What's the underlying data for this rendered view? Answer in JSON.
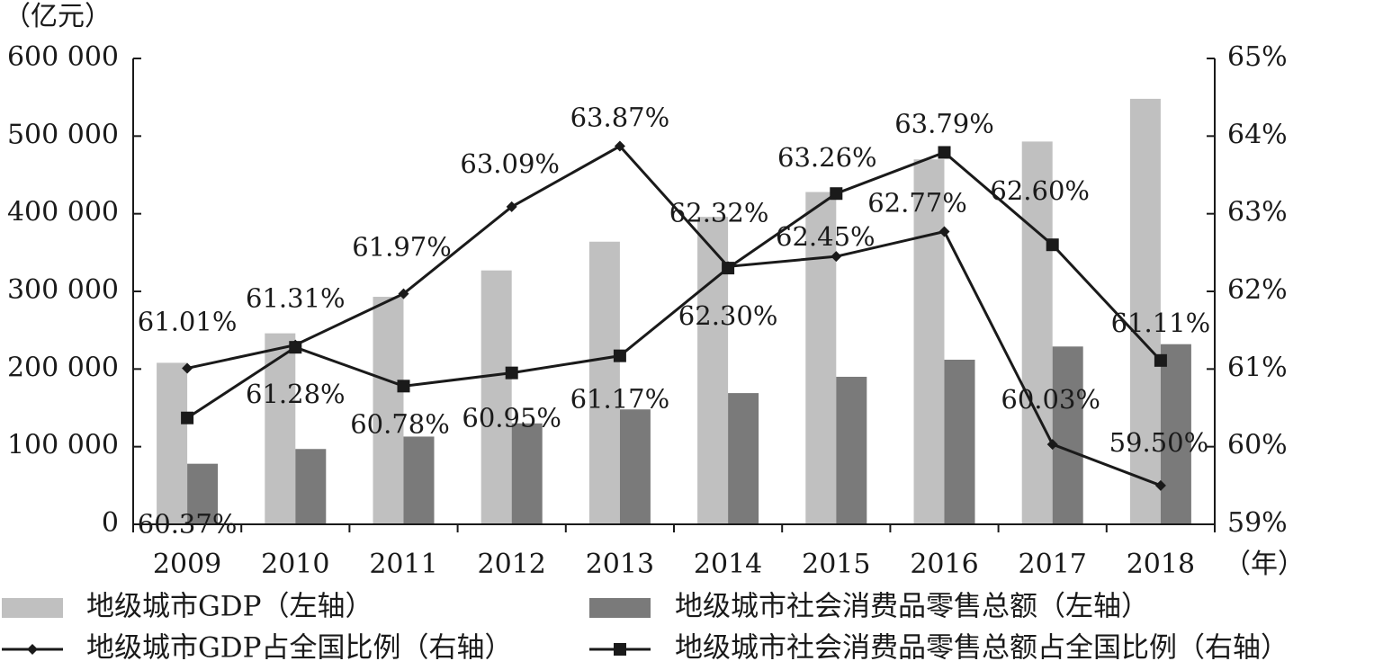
{
  "colors": {
    "gdp_bar": "#c0c0c0",
    "retail_bar": "#7a7a7a",
    "line": "#1a1a1a",
    "axis": "#1a1a1a",
    "text": "#1a1a1a"
  },
  "chart_data": {
    "type": "bar+line",
    "title": "",
    "y_left_unit": "（亿元）",
    "x_unit": "（年）",
    "categories": [
      "2009",
      "2010",
      "2011",
      "2012",
      "2013",
      "2014",
      "2015",
      "2016",
      "2017",
      "2018"
    ],
    "y_left": {
      "range": [
        0,
        600000
      ],
      "ticks": [
        0,
        100000,
        200000,
        300000,
        400000,
        500000,
        600000
      ],
      "tick_labels": [
        "0",
        "100 000",
        "200 000",
        "300 000",
        "400 000",
        "500 000",
        "600 000"
      ]
    },
    "y_right": {
      "range": [
        59,
        65
      ],
      "ticks": [
        59,
        60,
        61,
        62,
        63,
        64,
        65
      ],
      "tick_labels": [
        "59%",
        "60%",
        "61%",
        "62%",
        "63%",
        "64%",
        "65%"
      ]
    },
    "series": [
      {
        "name": "地级城市GDP（左轴）",
        "kind": "bar",
        "axis": "left",
        "values": [
          208000,
          246000,
          293000,
          327000,
          364000,
          396000,
          428000,
          470000,
          493000,
          548000
        ]
      },
      {
        "name": "地级城市社会消费品零售总额（左轴）",
        "kind": "bar",
        "axis": "left",
        "values": [
          78000,
          97000,
          113000,
          130000,
          148000,
          169000,
          190000,
          212000,
          229000,
          232000
        ]
      },
      {
        "name": "地级城市GDP占全国比例（右轴）",
        "kind": "line",
        "marker": "diamond",
        "axis": "right",
        "values": [
          61.01,
          61.31,
          61.97,
          63.09,
          63.87,
          62.32,
          62.45,
          62.77,
          60.03,
          59.5
        ],
        "labels": [
          "61.01%",
          "61.31%",
          "61.97%",
          "63.09%",
          "63.87%",
          "62.32%",
          "62.45%",
          "62.77%",
          "60.03%",
          "59.50%"
        ]
      },
      {
        "name": "地级城市社会消费品零售总额占全国比例（右轴）",
        "kind": "line",
        "marker": "square",
        "axis": "right",
        "values": [
          60.37,
          61.28,
          60.78,
          60.95,
          61.17,
          62.3,
          63.26,
          63.79,
          62.6,
          61.11
        ],
        "labels": [
          "60.37%",
          "61.28%",
          "60.78%",
          "60.95%",
          "61.17%",
          "62.30%",
          "63.26%",
          "63.79%",
          "62.60%",
          "61.11%"
        ]
      }
    ],
    "grid": false,
    "legend_position": "bottom"
  }
}
